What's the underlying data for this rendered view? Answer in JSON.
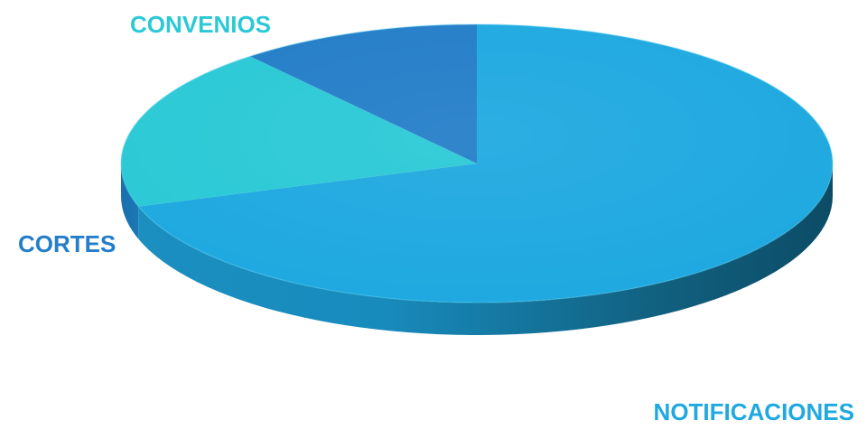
{
  "chart_data": {
    "type": "pie",
    "style": "3d",
    "categories": [
      "NOTIFICACIONES",
      "CONVENIOS",
      "CORTES"
    ],
    "values": [
      70,
      19,
      11
    ],
    "colors": {
      "NOTIFICACIONES": "#1FA9E0",
      "CONVENIOS": "#2BC9D6",
      "CORTES": "#247EC8"
    },
    "label_colors": {
      "NOTIFICACIONES": "#1FA9E0",
      "CONVENIOS": "#2BC9D6",
      "CORTES": "#247EC8"
    },
    "legend": "none"
  }
}
